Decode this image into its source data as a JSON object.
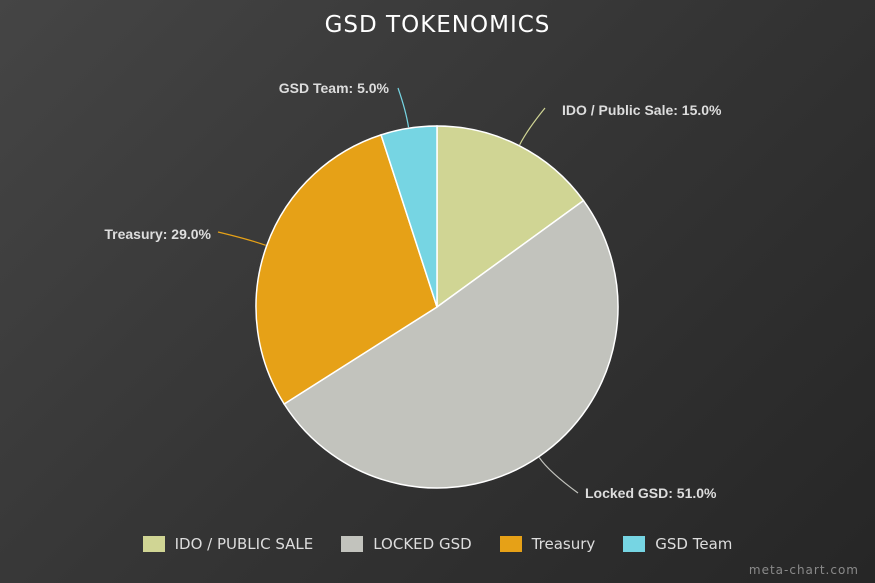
{
  "chart_data": {
    "type": "pie",
    "title": "GSD TOKENOMICS",
    "start_angle_deg": 0,
    "direction": "clockwise",
    "slices": [
      {
        "name": "IDO / Public Sale",
        "value": 15.0,
        "label": "IDO / Public Sale: 15.0%",
        "legend": "IDO / PUBLIC SALE",
        "color": "#d0d594"
      },
      {
        "name": "Locked GSD",
        "value": 51.0,
        "label": "Locked GSD: 51.0%",
        "legend": "LOCKED GSD",
        "color": "#c2c3bd"
      },
      {
        "name": "Treasury",
        "value": 29.0,
        "label": "Treasury: 29.0%",
        "legend": "Treasury",
        "color": "#e6a117"
      },
      {
        "name": "GSD Team",
        "value": 5.0,
        "label": "GSD Team: 5.0%",
        "legend": "GSD Team",
        "color": "#76d5e3"
      }
    ],
    "legend_position": "bottom"
  },
  "watermark": "meta-chart.com"
}
